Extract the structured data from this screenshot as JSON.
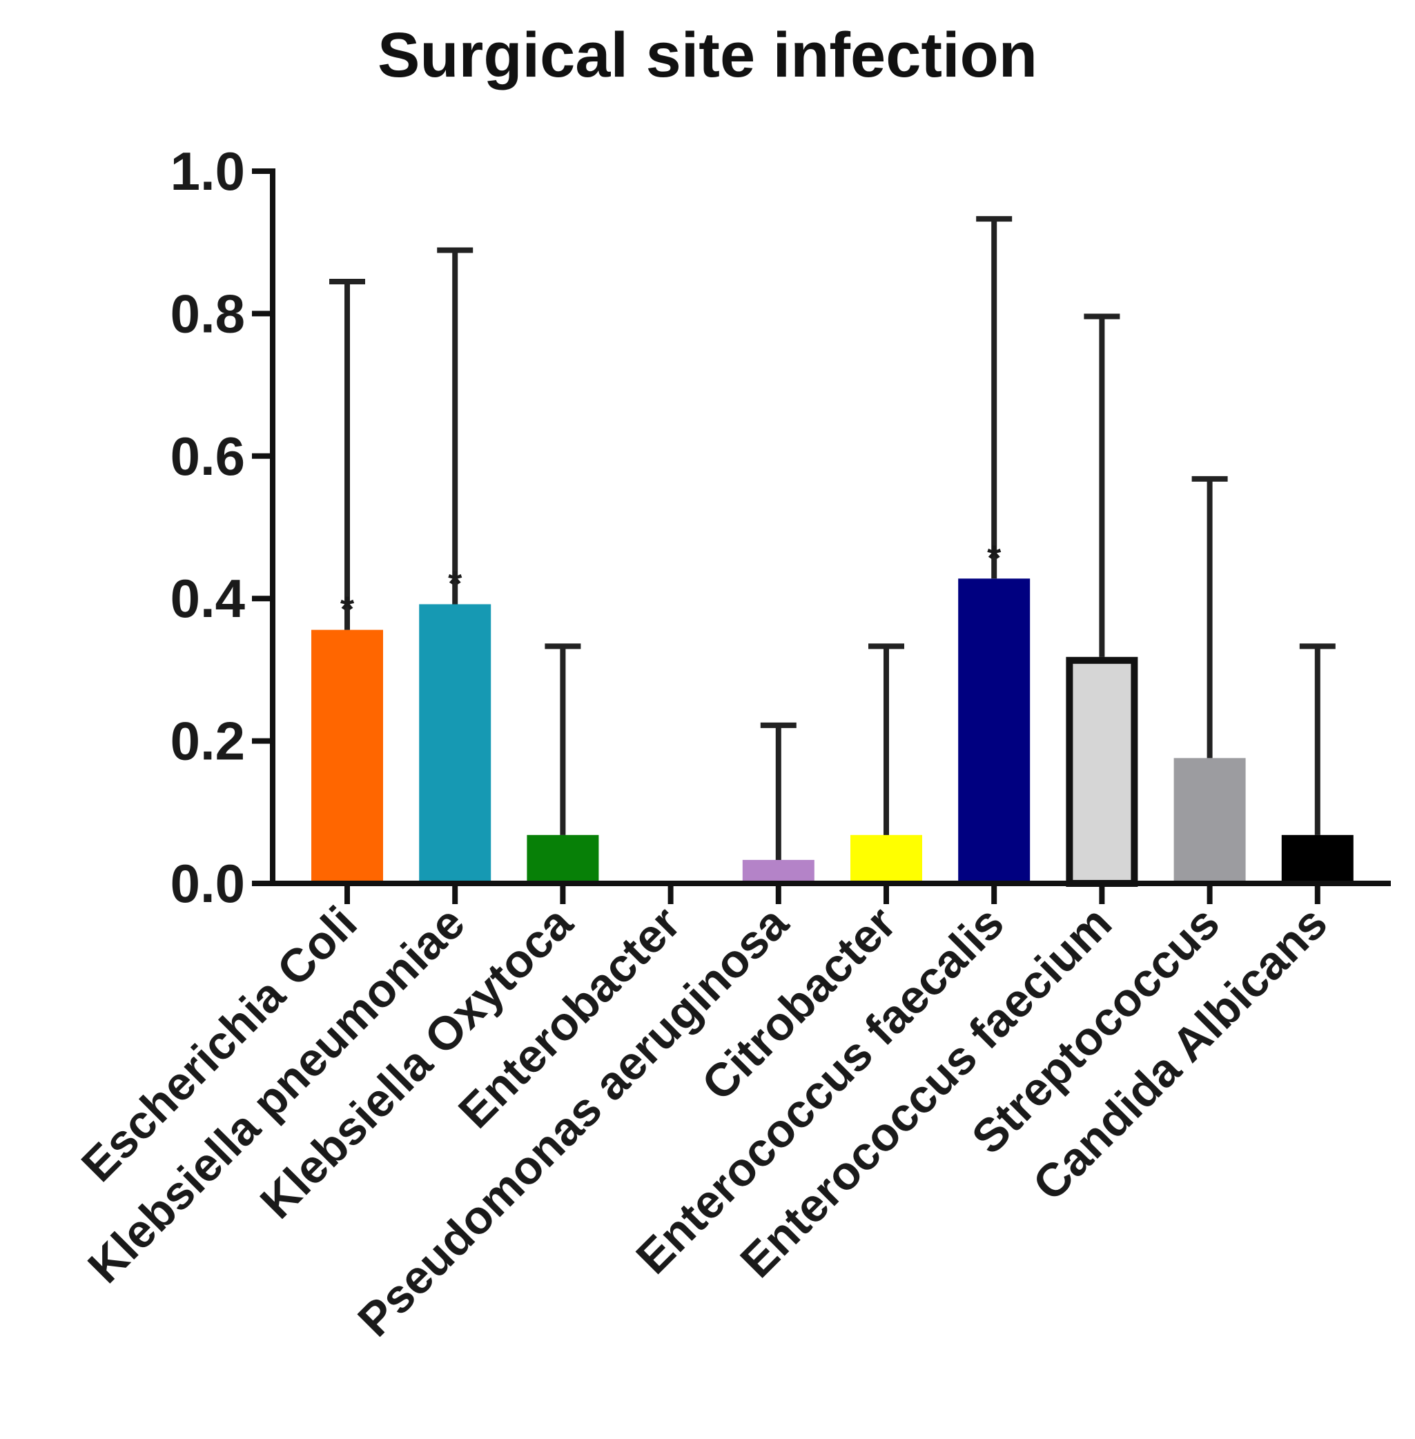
{
  "chart_data": {
    "type": "bar",
    "title": "Surgical site infection",
    "xlabel": "",
    "ylabel": "",
    "ylim": [
      0,
      1.0
    ],
    "yticks": [
      "0.0",
      "0.2",
      "0.4",
      "0.6",
      "0.8",
      "1.0"
    ],
    "categories": [
      "Escherichia Coli",
      "Klebsiella pneumoniae",
      "Klebsiella Oxytoca",
      "Enterobacter",
      "Pseudomonas aeruginosa",
      "Citrobacter",
      "Enterococcus faecalis",
      "Enterococcus faecium",
      "Streptococcus",
      "Candida Albicans"
    ],
    "values": [
      0.356,
      0.392,
      0.068,
      0.0,
      0.033,
      0.068,
      0.428,
      0.318,
      0.176,
      0.068
    ],
    "error_upper": [
      0.845,
      0.889,
      0.333,
      0.0,
      0.222,
      0.333,
      0.933,
      0.796,
      0.568,
      0.333
    ],
    "significance": [
      "*",
      "*",
      "",
      "",
      "",
      "",
      "*",
      "",
      "",
      ""
    ],
    "colors": [
      "#ff6600",
      "#1699b3",
      "#078007",
      "#ffffff",
      "#b483c8",
      "#ffff00",
      "#000080",
      "#d6d6d6",
      "#9c9ca0",
      "#000000"
    ],
    "outlined": [
      false,
      false,
      false,
      false,
      false,
      false,
      false,
      true,
      false,
      false
    ]
  }
}
